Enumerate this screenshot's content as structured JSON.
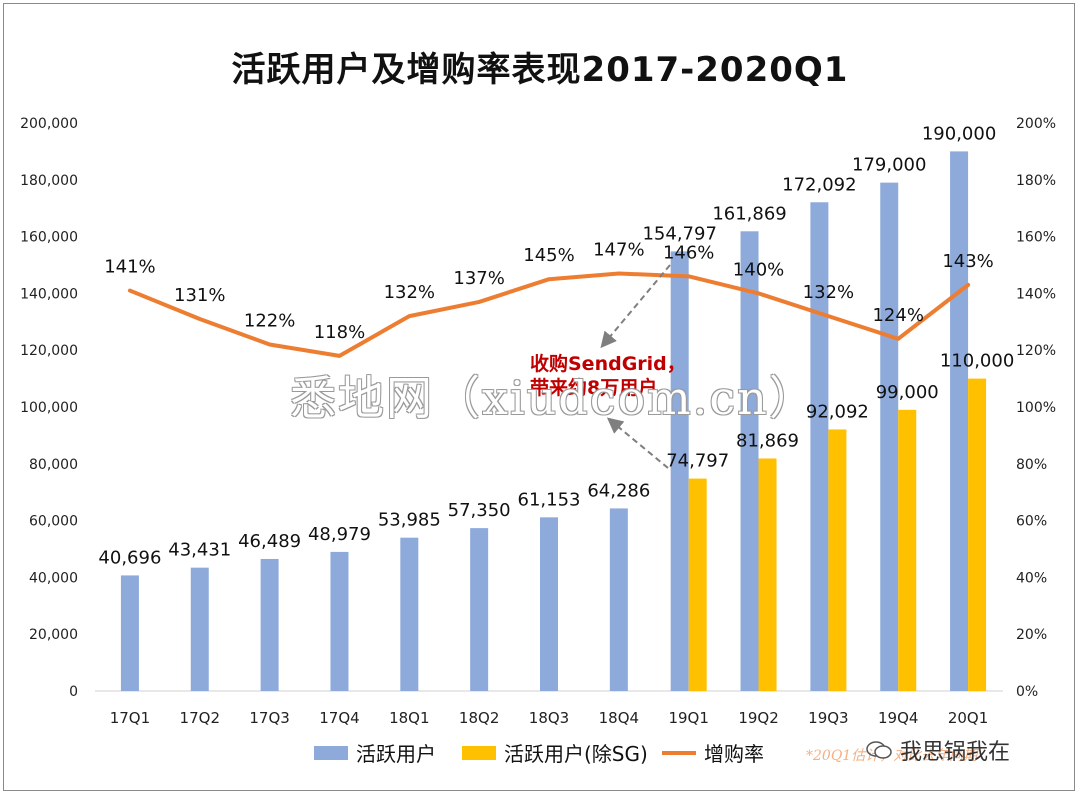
{
  "chart_data": {
    "type": "bar",
    "title": "活跃用户及增购率表现2017-2020Q1",
    "categories": [
      "17Q1",
      "17Q2",
      "17Q3",
      "17Q4",
      "18Q1",
      "18Q2",
      "18Q3",
      "18Q4",
      "19Q1",
      "19Q2",
      "19Q3",
      "19Q4",
      "20Q1"
    ],
    "ylim": [
      0,
      200000
    ],
    "y2lim": [
      0,
      2.0
    ],
    "y_ticks": [
      "0",
      "20,000",
      "40,000",
      "60,000",
      "80,000",
      "100,000",
      "120,000",
      "140,000",
      "160,000",
      "180,000",
      "200,000"
    ],
    "y2_ticks": [
      "0%",
      "20%",
      "40%",
      "60%",
      "80%",
      "100%",
      "120%",
      "140%",
      "160%",
      "180%",
      "200%"
    ],
    "series": [
      {
        "name": "活跃用户",
        "kind": "bar",
        "color": "#8eaadb",
        "values": [
          40696,
          43431,
          46489,
          48979,
          53985,
          57350,
          61153,
          64286,
          154797,
          161869,
          172092,
          179000,
          190000
        ],
        "labels": [
          "40,696",
          "43,431",
          "46,489",
          "48,979",
          "53,985",
          "57,350",
          "61,153",
          "64,286",
          "154,797",
          "161,869",
          "172,092",
          "179,000",
          "190,000"
        ]
      },
      {
        "name": "活跃用户(除SG)",
        "kind": "bar",
        "color": "#ffc000",
        "values": [
          null,
          null,
          null,
          null,
          null,
          null,
          null,
          null,
          74797,
          81869,
          92092,
          99000,
          110000
        ],
        "labels": [
          "",
          "",
          "",
          "",
          "",
          "",
          "",
          "",
          "74,797",
          "81,869",
          "92,092",
          "99,000",
          "110,000"
        ]
      },
      {
        "name": "增购率",
        "kind": "line",
        "axis": "right",
        "color": "#ed7d31",
        "values": [
          1.41,
          1.31,
          1.22,
          1.18,
          1.32,
          1.37,
          1.45,
          1.47,
          1.46,
          1.4,
          1.32,
          1.24,
          1.43
        ],
        "labels": [
          "141%",
          "131%",
          "122%",
          "118%",
          "132%",
          "137%",
          "145%",
          "147%",
          "146%",
          "140%",
          "132%",
          "124%",
          "143%"
        ]
      }
    ],
    "annotation": [
      "收购SendGrid，",
      "带来约8万用户"
    ],
    "legend_position": "bottom",
    "grid": false
  },
  "footnote": "*20Q1估计，对比去年同期",
  "watermark": "悉地网（xiudcom.cn）",
  "wechat_label": "我思锅我在"
}
